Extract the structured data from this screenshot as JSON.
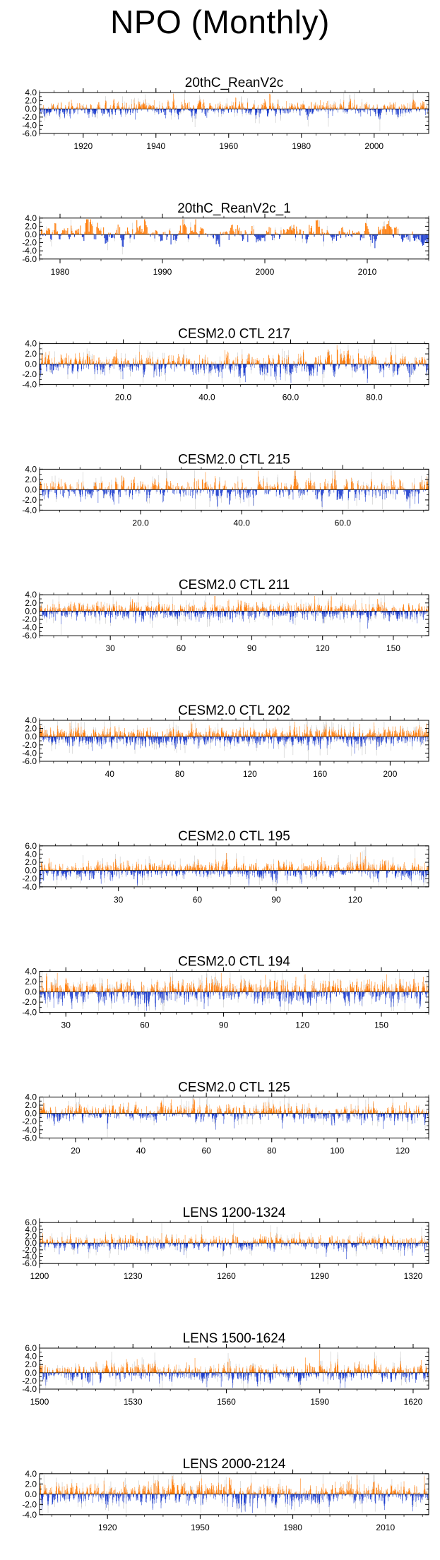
{
  "page": {
    "title": "NPO (Monthly)"
  },
  "colors": {
    "positive": "#ff7f0e",
    "negative": "#1f3fcf",
    "faint": "#c8c8c8",
    "axis": "#000000"
  },
  "chart_data": [
    {
      "type": "bar",
      "title": "20thC_ReanV2c",
      "ylim": [
        -6,
        4
      ],
      "yticks": [
        4,
        2,
        0,
        -2,
        -4,
        -6
      ],
      "ytick_labels": [
        "4.0",
        "2.0",
        "0.0",
        "-2.0",
        "-4.0",
        "-6.0"
      ],
      "xlim": [
        1908,
        2015
      ],
      "xticks": [
        1920,
        1940,
        1960,
        1980,
        2000
      ],
      "xtick_labels": [
        "1920",
        "1940",
        "1960",
        "1980",
        "2000"
      ],
      "n_months": 1284,
      "seed": 11,
      "amplitude": 0.8
    },
    {
      "type": "bar",
      "title": "20thC_ReanV2c_1",
      "ylim": [
        -6,
        4
      ],
      "yticks": [
        4,
        2,
        0,
        -2,
        -4,
        -6
      ],
      "ytick_labels": [
        "4.0",
        "2.0",
        "0.0",
        "-2.0",
        "-4.0",
        "-6.0"
      ],
      "xlim": [
        1978,
        2016
      ],
      "xticks": [
        1980,
        1990,
        2000,
        2010
      ],
      "xtick_labels": [
        "1980",
        "1990",
        "2000",
        "2010"
      ],
      "n_months": 456,
      "seed": 23,
      "amplitude": 1.0
    },
    {
      "type": "bar",
      "title": "CESM2.0 CTL 217",
      "ylim": [
        -4,
        4
      ],
      "yticks": [
        4,
        2,
        0,
        -2,
        -4
      ],
      "ytick_labels": [
        "4.0",
        "2.0",
        "0.0",
        "-2.0",
        "-4.0"
      ],
      "xlim": [
        0,
        93
      ],
      "xticks": [
        20,
        40,
        60,
        80
      ],
      "xtick_labels": [
        "20.0",
        "40.0",
        "60.0",
        "80.0"
      ],
      "n_months": 1116,
      "seed": 37,
      "amplitude": 0.9
    },
    {
      "type": "bar",
      "title": "CESM2.0 CTL 215",
      "ylim": [
        -4,
        4
      ],
      "yticks": [
        4,
        2,
        0,
        -2,
        -4
      ],
      "ytick_labels": [
        "4.0",
        "2.0",
        "0.0",
        "-2.0",
        "-4.0"
      ],
      "xlim": [
        0,
        77
      ],
      "xticks": [
        20,
        40,
        60
      ],
      "xtick_labels": [
        "20.0",
        "40.0",
        "60.0"
      ],
      "n_months": 924,
      "seed": 41,
      "amplitude": 0.9
    },
    {
      "type": "bar",
      "title": "CESM2.0 CTL 211",
      "ylim": [
        -6,
        4
      ],
      "yticks": [
        4,
        2,
        0,
        -2,
        -4,
        -6
      ],
      "ytick_labels": [
        "4.0",
        "2.0",
        "0.0",
        "-2.0",
        "-4.0",
        "-6.0"
      ],
      "xlim": [
        0,
        165
      ],
      "xticks": [
        30,
        60,
        90,
        120,
        150
      ],
      "xtick_labels": [
        "30",
        "60",
        "90",
        "120",
        "150"
      ],
      "n_months": 1980,
      "seed": 53,
      "amplitude": 0.85
    },
    {
      "type": "bar",
      "title": "CESM2.0 CTL 202",
      "ylim": [
        -6,
        4
      ],
      "yticks": [
        4,
        2,
        0,
        -2,
        -4,
        -6
      ],
      "ytick_labels": [
        "4.0",
        "2.0",
        "0.0",
        "-2.0",
        "-4.0",
        "-6.0"
      ],
      "xlim": [
        0,
        222
      ],
      "xticks": [
        40,
        80,
        120,
        160,
        200
      ],
      "xtick_labels": [
        "40",
        "80",
        "120",
        "160",
        "200"
      ],
      "n_months": 2664,
      "seed": 67,
      "amplitude": 0.85
    },
    {
      "type": "bar",
      "title": "CESM2.0 CTL 195",
      "ylim": [
        -4,
        6
      ],
      "yticks": [
        6,
        4,
        2,
        0,
        -2,
        -4
      ],
      "ytick_labels": [
        "6.0",
        "4.0",
        "2.0",
        "0.0",
        "-2.0",
        "-4.0"
      ],
      "xlim": [
        0,
        148
      ],
      "xticks": [
        30,
        60,
        90,
        120
      ],
      "xtick_labels": [
        "30",
        "60",
        "90",
        "120"
      ],
      "n_months": 1776,
      "seed": 71,
      "amplitude": 0.85
    },
    {
      "type": "bar",
      "title": "CESM2.0 CTL 194",
      "ylim": [
        -4,
        4
      ],
      "yticks": [
        4,
        2,
        0,
        -2,
        -4
      ],
      "ytick_labels": [
        "4.0",
        "2.0",
        "0.0",
        "-2.0",
        "-4.0"
      ],
      "xlim": [
        20,
        168
      ],
      "xticks": [
        30,
        60,
        90,
        120,
        150
      ],
      "xtick_labels": [
        "30",
        "60",
        "90",
        "120",
        "150"
      ],
      "n_months": 1776,
      "seed": 83,
      "amplitude": 0.95
    },
    {
      "type": "bar",
      "title": "CESM2.0 CTL 125",
      "ylim": [
        -6,
        4
      ],
      "yticks": [
        4,
        2,
        0,
        -2,
        -4,
        -6
      ],
      "ytick_labels": [
        "4.0",
        "2.0",
        "0.0",
        "-2.0",
        "-4.0",
        "-6.0"
      ],
      "xlim": [
        9,
        128
      ],
      "xticks": [
        20,
        40,
        60,
        80,
        100,
        120
      ],
      "xtick_labels": [
        "20",
        "40",
        "60",
        "80",
        "100",
        "120"
      ],
      "n_months": 1428,
      "seed": 97,
      "amplitude": 0.85
    },
    {
      "type": "bar",
      "title": "LENS 1200-1324",
      "ylim": [
        -6,
        6
      ],
      "yticks": [
        6,
        4,
        2,
        0,
        -2,
        -4,
        -6
      ],
      "ytick_labels": [
        "6.0",
        "4.0",
        "2.0",
        "0.0",
        "-2.0",
        "-4.0",
        "-6.0"
      ],
      "xlim": [
        1200,
        1325
      ],
      "xticks": [
        1200,
        1230,
        1260,
        1290,
        1320
      ],
      "xtick_labels": [
        "1200",
        "1230",
        "1260",
        "1290",
        "1320"
      ],
      "n_months": 1500,
      "seed": 101,
      "amplitude": 0.8
    },
    {
      "type": "bar",
      "title": "LENS 1500-1624",
      "ylim": [
        -4,
        6
      ],
      "yticks": [
        6,
        4,
        2,
        0,
        -2,
        -4
      ],
      "ytick_labels": [
        "6.0",
        "4.0",
        "2.0",
        "0.0",
        "-2.0",
        "-4.0"
      ],
      "xlim": [
        1500,
        1625
      ],
      "xticks": [
        1500,
        1530,
        1560,
        1590,
        1620
      ],
      "xtick_labels": [
        "1500",
        "1530",
        "1560",
        "1590",
        "1620"
      ],
      "n_months": 1500,
      "seed": 113,
      "amplitude": 0.85
    },
    {
      "type": "bar",
      "title": "LENS 2000-2124",
      "ylim": [
        -4,
        4
      ],
      "yticks": [
        4,
        2,
        0,
        -2,
        -4
      ],
      "ytick_labels": [
        "4.0",
        "2.0",
        "0.0",
        "-2.0",
        "-4.0"
      ],
      "xlim": [
        1898,
        2024
      ],
      "xticks": [
        1920,
        1950,
        1980,
        2010
      ],
      "xtick_labels": [
        "1920",
        "1950",
        "1980",
        "2010"
      ],
      "n_months": 1512,
      "seed": 127,
      "amplitude": 0.85
    }
  ]
}
